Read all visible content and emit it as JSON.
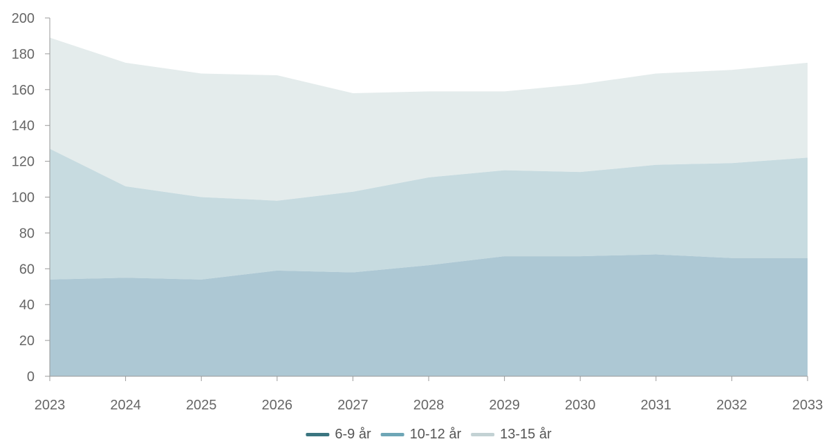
{
  "chart_data": {
    "type": "area",
    "stacked": true,
    "title": "",
    "xlabel": "",
    "ylabel": "",
    "categories": [
      "2023",
      "2024",
      "2025",
      "2026",
      "2027",
      "2028",
      "2029",
      "2030",
      "2031",
      "2032",
      "2033"
    ],
    "ylim": [
      0,
      200
    ],
    "yticks": [
      "0",
      "20",
      "40",
      "60",
      "80",
      "100",
      "120",
      "140",
      "160",
      "180",
      "200"
    ],
    "grid": false,
    "legend_position": "bottom-center",
    "series": [
      {
        "name": "6-9 år",
        "values": [
          54,
          55,
          54,
          59,
          58,
          62,
          67,
          67,
          68,
          66,
          66
        ],
        "fill_color": "#adc8d4",
        "legend_color": "#3a7580"
      },
      {
        "name": "10-12 år",
        "values": [
          73,
          51,
          46,
          39,
          45,
          49,
          48,
          47,
          50,
          53,
          56
        ],
        "fill_color": "#c7dbe0",
        "legend_color": "#6ea6b6"
      },
      {
        "name": "13-15 år",
        "values": [
          62,
          69,
          69,
          70,
          55,
          48,
          44,
          49,
          51,
          52,
          53
        ],
        "fill_color": "#e4ecec",
        "legend_color": "#c3d2d4"
      }
    ]
  }
}
